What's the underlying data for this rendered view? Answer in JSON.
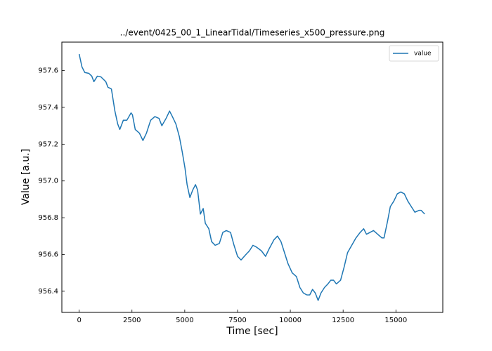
{
  "chart_data": {
    "type": "line",
    "title": "../event/0425_00_1_LinearTidal/Timeseries_x500_pressure.png",
    "x_label": "Time [sec]",
    "y_label": "Value [a.u.]",
    "x": [
      0,
      133,
      265,
      460,
      597,
      697,
      863,
      1029,
      1261,
      1361,
      1527,
      1692,
      1825,
      1925,
      2091,
      2257,
      2456,
      2522,
      2655,
      2854,
      3020,
      3186,
      3385,
      3584,
      3783,
      3916,
      4115,
      4281,
      4414,
      4580,
      4746,
      4878,
      5011,
      5111,
      5243,
      5376,
      5509,
      5608,
      5741,
      5874,
      5973,
      6139,
      6272,
      6438,
      6637,
      6803,
      6969,
      7168,
      7334,
      7500,
      7666,
      7898,
      8064,
      8230,
      8396,
      8628,
      8827,
      8993,
      9225,
      9391,
      9557,
      9723,
      9890,
      10088,
      10288,
      10454,
      10620,
      10786,
      10918,
      11051,
      11183,
      11316,
      11449,
      11615,
      11781,
      11914,
      12047,
      12180,
      12379,
      12544,
      12710,
      12909,
      13108,
      13307,
      13473,
      13606,
      13772,
      13938,
      14137,
      14336,
      14436,
      14602,
      14734,
      14900,
      15066,
      15232,
      15398,
      15564,
      15730,
      15896,
      16095,
      16195,
      16361
    ],
    "series": [
      {
        "name": "value",
        "color": "#1f77b4",
        "values": [
          957.69,
          957.62,
          957.59,
          957.585,
          957.57,
          957.54,
          957.57,
          957.566,
          957.54,
          957.51,
          957.5,
          957.38,
          957.31,
          957.28,
          957.33,
          957.33,
          957.37,
          957.36,
          957.28,
          957.26,
          957.22,
          957.26,
          957.33,
          957.35,
          957.34,
          957.3,
          957.34,
          957.38,
          957.35,
          957.31,
          957.24,
          957.16,
          957.07,
          956.98,
          956.91,
          956.95,
          956.98,
          956.95,
          956.82,
          956.85,
          956.77,
          956.74,
          956.67,
          956.65,
          956.66,
          956.72,
          956.73,
          956.72,
          956.65,
          956.59,
          956.57,
          956.6,
          956.62,
          956.65,
          956.64,
          956.62,
          956.59,
          956.63,
          956.68,
          956.7,
          956.67,
          956.61,
          956.55,
          956.5,
          956.48,
          956.42,
          956.39,
          956.38,
          956.38,
          956.41,
          956.39,
          956.35,
          956.39,
          956.42,
          956.44,
          956.46,
          956.46,
          956.44,
          956.46,
          956.53,
          956.61,
          956.65,
          956.69,
          956.72,
          956.74,
          956.71,
          956.72,
          956.73,
          956.71,
          956.69,
          956.69,
          956.78,
          956.86,
          956.89,
          956.93,
          956.94,
          956.93,
          956.89,
          956.86,
          956.83,
          956.84,
          956.84,
          956.82
        ]
      }
    ],
    "xlim": [
      -820,
      17220
    ],
    "ylim": [
      956.285,
      957.755
    ],
    "xticks": [
      0,
      2500,
      5000,
      7500,
      10000,
      12500,
      15000
    ],
    "yticks": [
      956.4,
      956.6,
      956.8,
      {
        "value": 957,
        "label": "957.0"
      },
      957.2,
      957.4,
      957.6
    ],
    "legend": "upper right",
    "grid": false
  }
}
